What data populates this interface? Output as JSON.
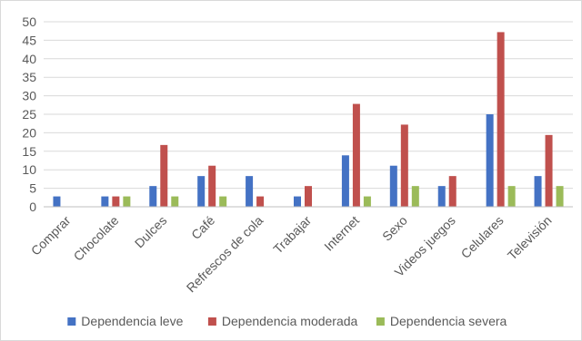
{
  "chart_data": {
    "type": "bar",
    "title": "",
    "xlabel": "",
    "ylabel": "",
    "ylim": [
      0,
      50
    ],
    "yticks": [
      "0",
      "5",
      "10",
      "15",
      "20",
      "25",
      "30",
      "35",
      "40",
      "45",
      "50"
    ],
    "grid": true,
    "legend_position": "bottom",
    "categories": [
      "Comprar",
      "Chocolate",
      "Dulces",
      "Café",
      "Refrescos de cola",
      "Trabajar",
      "Internet",
      "Sexo",
      "Videos juegos",
      "Celulares",
      "Televisión"
    ],
    "series": [
      {
        "name": "Dependencia leve",
        "color": "#4472C4",
        "values": [
          2.8,
          2.8,
          5.6,
          8.3,
          8.3,
          2.8,
          13.9,
          11.1,
          5.6,
          25.0,
          8.3
        ]
      },
      {
        "name": "Dependencia moderada",
        "color": "#C0504D",
        "values": [
          0,
          2.8,
          16.7,
          11.1,
          2.8,
          5.6,
          27.8,
          22.2,
          8.3,
          47.2,
          19.4
        ]
      },
      {
        "name": "Dependencia severa",
        "color": "#9BBB59",
        "values": [
          0,
          2.8,
          2.8,
          2.8,
          0,
          0,
          2.8,
          5.6,
          0,
          5.6,
          5.6
        ]
      }
    ]
  }
}
